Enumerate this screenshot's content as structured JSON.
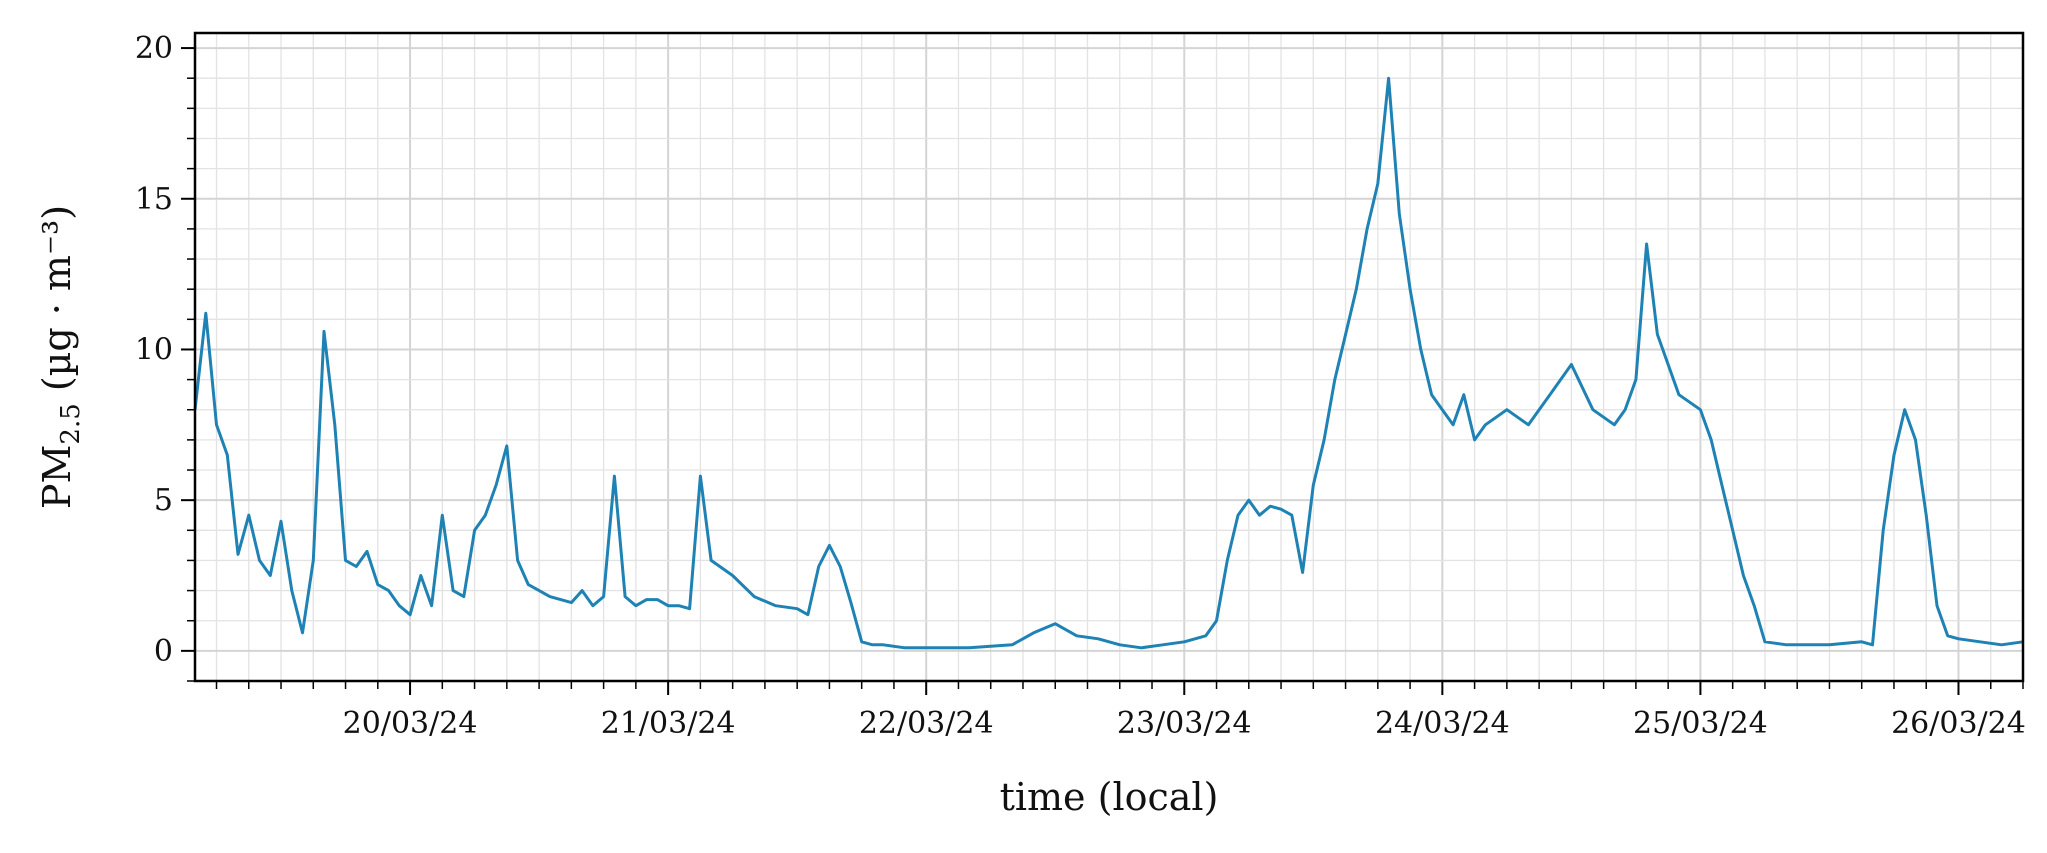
{
  "chart_data": {
    "type": "line",
    "title": "",
    "xlabel": "time (local)",
    "ylabel_main": "PM",
    "ylabel_sub": "2.5",
    "ylabel_units": " (µg · m⁻³)",
    "xlim": [
      "2024-03-19 04:00",
      "2024-03-26 06:00"
    ],
    "ylim": [
      -1,
      20.5
    ],
    "x_ticks": [
      "2024-03-20",
      "2024-03-21",
      "2024-03-22",
      "2024-03-23",
      "2024-03-24",
      "2024-03-25",
      "2024-03-26"
    ],
    "x_tick_labels": [
      "20/03/24",
      "21/03/24",
      "22/03/24",
      "23/03/24",
      "24/03/24",
      "25/03/24",
      "26/03/24"
    ],
    "y_ticks": [
      0,
      5,
      10,
      15,
      20
    ],
    "y_tick_labels": [
      "0",
      "5",
      "10",
      "15",
      "20"
    ],
    "grid": true,
    "series": [
      {
        "color": "#1f82b4",
        "x": [
          "2024-03-19 04:00",
          "2024-03-19 05:00",
          "2024-03-19 06:00",
          "2024-03-19 07:00",
          "2024-03-19 08:00",
          "2024-03-19 09:00",
          "2024-03-19 10:00",
          "2024-03-19 11:00",
          "2024-03-19 12:00",
          "2024-03-19 13:00",
          "2024-03-19 14:00",
          "2024-03-19 15:00",
          "2024-03-19 16:00",
          "2024-03-19 17:00",
          "2024-03-19 18:00",
          "2024-03-19 19:00",
          "2024-03-19 20:00",
          "2024-03-19 21:00",
          "2024-03-19 22:00",
          "2024-03-19 23:00",
          "2024-03-20 00:00",
          "2024-03-20 01:00",
          "2024-03-20 02:00",
          "2024-03-20 03:00",
          "2024-03-20 04:00",
          "2024-03-20 05:00",
          "2024-03-20 06:00",
          "2024-03-20 07:00",
          "2024-03-20 08:00",
          "2024-03-20 09:00",
          "2024-03-20 10:00",
          "2024-03-20 11:00",
          "2024-03-20 12:00",
          "2024-03-20 13:00",
          "2024-03-20 14:00",
          "2024-03-20 15:00",
          "2024-03-20 16:00",
          "2024-03-20 17:00",
          "2024-03-20 18:00",
          "2024-03-20 19:00",
          "2024-03-20 20:00",
          "2024-03-20 21:00",
          "2024-03-20 22:00",
          "2024-03-20 23:00",
          "2024-03-21 00:00",
          "2024-03-21 01:00",
          "2024-03-21 02:00",
          "2024-03-21 03:00",
          "2024-03-21 04:00",
          "2024-03-21 06:00",
          "2024-03-21 08:00",
          "2024-03-21 10:00",
          "2024-03-21 12:00",
          "2024-03-21 13:00",
          "2024-03-21 14:00",
          "2024-03-21 15:00",
          "2024-03-21 16:00",
          "2024-03-21 17:00",
          "2024-03-21 18:00",
          "2024-03-21 19:00",
          "2024-03-21 20:00",
          "2024-03-21 22:00",
          "2024-03-22 00:00",
          "2024-03-22 04:00",
          "2024-03-22 08:00",
          "2024-03-22 10:00",
          "2024-03-22 12:00",
          "2024-03-22 14:00",
          "2024-03-22 16:00",
          "2024-03-22 18:00",
          "2024-03-22 20:00",
          "2024-03-22 22:00",
          "2024-03-23 00:00",
          "2024-03-23 02:00",
          "2024-03-23 03:00",
          "2024-03-23 04:00",
          "2024-03-23 05:00",
          "2024-03-23 06:00",
          "2024-03-23 07:00",
          "2024-03-23 08:00",
          "2024-03-23 09:00",
          "2024-03-23 10:00",
          "2024-03-23 11:00",
          "2024-03-23 12:00",
          "2024-03-23 13:00",
          "2024-03-23 14:00",
          "2024-03-23 15:00",
          "2024-03-23 16:00",
          "2024-03-23 17:00",
          "2024-03-23 18:00",
          "2024-03-23 19:00",
          "2024-03-23 20:00",
          "2024-03-23 21:00",
          "2024-03-23 22:00",
          "2024-03-23 23:00",
          "2024-03-24 00:00",
          "2024-03-24 01:00",
          "2024-03-24 02:00",
          "2024-03-24 03:00",
          "2024-03-24 04:00",
          "2024-03-24 06:00",
          "2024-03-24 08:00",
          "2024-03-24 10:00",
          "2024-03-24 12:00",
          "2024-03-24 14:00",
          "2024-03-24 16:00",
          "2024-03-24 17:00",
          "2024-03-24 18:00",
          "2024-03-24 19:00",
          "2024-03-24 20:00",
          "2024-03-24 22:00",
          "2024-03-25 00:00",
          "2024-03-25 01:00",
          "2024-03-25 02:00",
          "2024-03-25 03:00",
          "2024-03-25 04:00",
          "2024-03-25 05:00",
          "2024-03-25 06:00",
          "2024-03-25 08:00",
          "2024-03-25 12:00",
          "2024-03-25 15:00",
          "2024-03-25 16:00",
          "2024-03-25 17:00",
          "2024-03-25 18:00",
          "2024-03-25 19:00",
          "2024-03-25 20:00",
          "2024-03-25 21:00",
          "2024-03-25 22:00",
          "2024-03-25 23:00",
          "2024-03-26 00:00",
          "2024-03-26 02:00",
          "2024-03-26 04:00",
          "2024-03-26 06:00"
        ],
        "y": [
          8.0,
          11.2,
          7.5,
          6.5,
          3.2,
          4.5,
          3.0,
          2.5,
          4.3,
          2.0,
          0.6,
          3.0,
          10.6,
          7.5,
          3.0,
          2.8,
          3.3,
          2.2,
          2.0,
          1.5,
          1.2,
          2.5,
          1.5,
          4.5,
          2.0,
          1.8,
          4.0,
          4.5,
          5.5,
          6.8,
          3.0,
          2.2,
          2.0,
          1.8,
          1.7,
          1.6,
          2.0,
          1.5,
          1.8,
          5.8,
          1.8,
          1.5,
          1.7,
          1.7,
          1.5,
          1.5,
          1.4,
          5.8,
          3.0,
          2.5,
          1.8,
          1.5,
          1.4,
          1.2,
          2.8,
          3.5,
          2.8,
          1.6,
          0.3,
          0.2,
          0.2,
          0.1,
          0.1,
          0.1,
          0.2,
          0.6,
          0.9,
          0.5,
          0.4,
          0.2,
          0.1,
          0.2,
          0.3,
          0.5,
          1.0,
          3.0,
          4.5,
          5.0,
          4.5,
          4.8,
          4.7,
          4.5,
          2.6,
          5.5,
          7.0,
          9.0,
          10.5,
          12.0,
          14.0,
          15.5,
          19.0,
          14.5,
          12.0,
          10.0,
          8.5,
          8.0,
          7.5,
          8.5,
          7.0,
          7.5,
          8.0,
          7.5,
          8.5,
          9.5,
          8.0,
          7.5,
          8.0,
          9.0,
          13.5,
          10.5,
          8.5,
          8.0,
          7.0,
          5.5,
          4.0,
          2.5,
          1.5,
          0.3,
          0.2,
          0.2,
          0.3,
          0.2,
          4.0,
          6.5,
          8.0,
          7.0,
          4.5,
          1.5,
          0.5,
          0.4,
          0.3,
          0.2,
          0.3
        ]
      }
    ]
  }
}
